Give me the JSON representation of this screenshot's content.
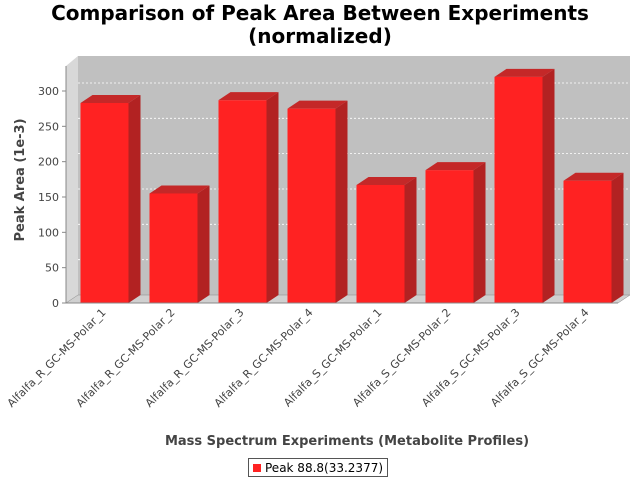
{
  "chart_data": {
    "type": "bar",
    "title_lines": [
      "Comparison of Peak Area Between Experiments",
      "(normalized)"
    ],
    "xlabel": "Mass Spectrum Experiments (Metabolite Profiles)",
    "ylabel": "Peak Area (1e-3)",
    "ylim": [
      0,
      340
    ],
    "yticks": [
      0,
      50,
      100,
      150,
      200,
      250,
      300
    ],
    "categories": [
      "Alfalfa_R_GC-MS-Polar_1",
      "Alfalfa_R_GC-MS-Polar_2",
      "Alfalfa_R_GC-MS-Polar_3",
      "Alfalfa_R_GC-MS-Polar_4",
      "Alfalfa_S_GC-MS-Polar_1",
      "Alfalfa_S_GC-MS-Polar_2",
      "Alfalfa_S_GC-MS-Polar_3",
      "Alfalfa_S_GC-MS-Polar_4"
    ],
    "series": [
      {
        "name": "Peak 88.8(33.2377)",
        "color": "#ff2222",
        "values": [
          283,
          155,
          287,
          275,
          167,
          188,
          320,
          173
        ]
      }
    ],
    "grid": true,
    "legend": "bottom"
  }
}
